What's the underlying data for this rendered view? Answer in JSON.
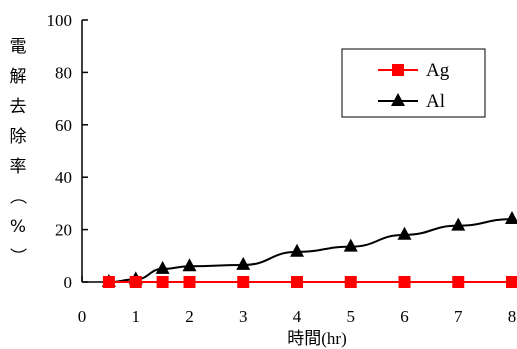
{
  "chart_data": {
    "type": "line",
    "xlabel": "時間(hr)",
    "ylabel": "電解去除率（%）",
    "xlim": [
      0,
      8
    ],
    "ylim": [
      0,
      100
    ],
    "x_ticks": [
      "0",
      "1",
      "2",
      "3",
      "4",
      "5",
      "6",
      "7",
      "8"
    ],
    "y_ticks": [
      "0",
      "20",
      "40",
      "60",
      "80",
      "100"
    ],
    "grid": false,
    "legend_position": "top-right",
    "series": [
      {
        "name": "Ag",
        "color": "#ff0000",
        "marker": "square",
        "x": [
          0.5,
          1,
          1.5,
          2,
          3,
          4,
          5,
          6,
          7,
          8
        ],
        "y": [
          0,
          0,
          0,
          0,
          0,
          0,
          0,
          0,
          0,
          0
        ]
      },
      {
        "name": "Al",
        "color": "#000000",
        "marker": "triangle",
        "x": [
          0.5,
          1,
          1.5,
          2,
          3,
          4,
          5,
          6,
          7,
          8
        ],
        "y": [
          0,
          1,
          5,
          6,
          6.5,
          11.5,
          13.5,
          18,
          21.5,
          24
        ]
      }
    ]
  }
}
